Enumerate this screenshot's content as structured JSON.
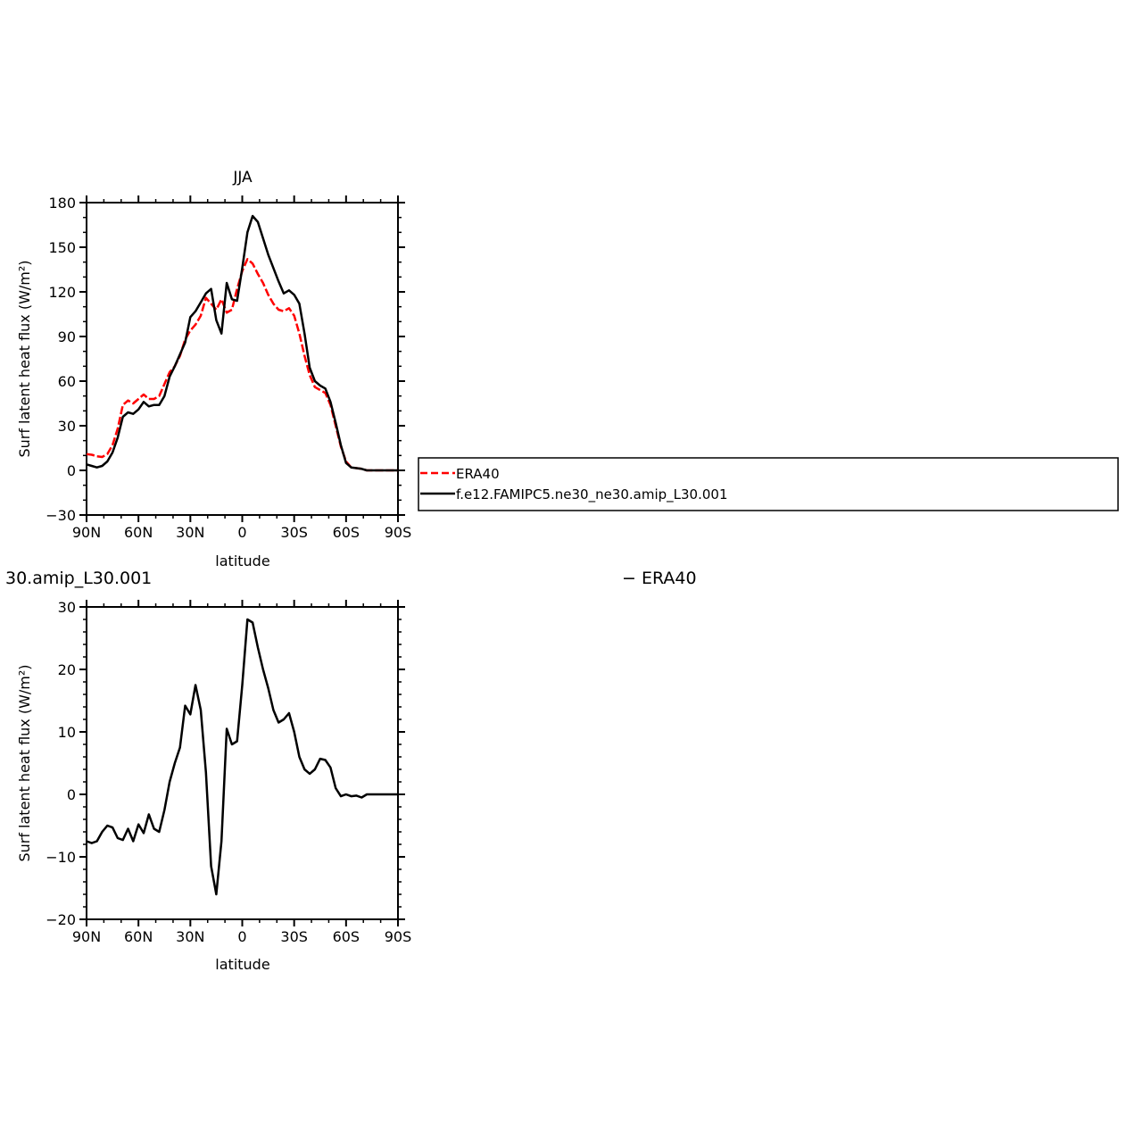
{
  "chart_data": [
    {
      "type": "line",
      "title": "JJA",
      "xlabel": "latitude",
      "ylabel": "Surf latent heat flux (W/m²)",
      "xlim": [
        90,
        -90
      ],
      "ylim": [
        -30,
        180
      ],
      "xticks": [
        90,
        60,
        30,
        0,
        -30,
        -60,
        -90
      ],
      "xtick_labels": [
        "90N",
        "60N",
        "30N",
        "0",
        "30S",
        "60S",
        "90S"
      ],
      "yticks": [
        -30,
        0,
        30,
        60,
        90,
        120,
        150,
        180
      ],
      "ytick_labels": [
        "−30",
        "0",
        "30",
        "60",
        "90",
        "120",
        "150",
        "180"
      ],
      "legend_position": "right",
      "series": [
        {
          "name": "ERA40",
          "color": "#ff0000",
          "style": "dashed",
          "x": [
            90,
            87,
            84,
            81,
            78,
            75,
            72,
            69,
            66,
            63,
            60,
            57,
            54,
            51,
            48,
            45,
            42,
            39,
            36,
            33,
            30,
            27,
            24,
            21,
            18,
            15,
            12,
            9,
            6,
            3,
            0,
            -3,
            -6,
            -9,
            -12,
            -15,
            -18,
            -21,
            -24,
            -27,
            -30,
            -33,
            -36,
            -39,
            -42,
            -45,
            -48,
            -51,
            -54,
            -57,
            -60,
            -63,
            -66,
            -69,
            -72,
            -75,
            -78,
            -81,
            -84,
            -87,
            -90
          ],
          "y": [
            11,
            10.5,
            9.5,
            9,
            11,
            17,
            28,
            44,
            47,
            45,
            48,
            51,
            48,
            48,
            50,
            58,
            66,
            70,
            77,
            88,
            94,
            98,
            104,
            116,
            112,
            108,
            115,
            106,
            108,
            122,
            134,
            142,
            139,
            132,
            126,
            118,
            112,
            108,
            107,
            109,
            104,
            92,
            77,
            64,
            56,
            54,
            52,
            44,
            30,
            16,
            6,
            2,
            1.5,
            1,
            0,
            0,
            0,
            0,
            0,
            0,
            0
          ]
        },
        {
          "name": "f.e12.FAMIPC5.ne30_ne30.amip_L30.001",
          "color": "#000000",
          "style": "solid",
          "x": [
            90,
            87,
            84,
            81,
            78,
            75,
            72,
            69,
            66,
            63,
            60,
            57,
            54,
            51,
            48,
            45,
            42,
            39,
            36,
            33,
            30,
            27,
            24,
            21,
            18,
            15,
            12,
            9,
            6,
            3,
            0,
            -3,
            -6,
            -9,
            -12,
            -15,
            -18,
            -21,
            -24,
            -27,
            -30,
            -33,
            -36,
            -39,
            -42,
            -45,
            -48,
            -51,
            -54,
            -57,
            -60,
            -63,
            -66,
            -69,
            -72,
            -75,
            -78,
            -81,
            -84,
            -87,
            -90
          ],
          "y": [
            4,
            3,
            2,
            3,
            6,
            12,
            22,
            36,
            39,
            38,
            41,
            46,
            43,
            44,
            44,
            50,
            63,
            70,
            78,
            86,
            103,
            107,
            113,
            119,
            122,
            101,
            92,
            126,
            115,
            114,
            136,
            160,
            171,
            167,
            156,
            145,
            136,
            127,
            119,
            121,
            118,
            112,
            92,
            69,
            60,
            57,
            55,
            46,
            32,
            17,
            5,
            2,
            1.5,
            1,
            0,
            0,
            0,
            0,
            0,
            0,
            0
          ]
        }
      ]
    },
    {
      "type": "line",
      "left_title": "30.amip_L30.001",
      "right_title": "− ERA40",
      "xlabel": "latitude",
      "ylabel": "Surf latent heat flux (W/m²)",
      "xlim": [
        90,
        -90
      ],
      "ylim": [
        -20,
        30
      ],
      "xticks": [
        90,
        60,
        30,
        0,
        -30,
        -60,
        -90
      ],
      "xtick_labels": [
        "90N",
        "60N",
        "30N",
        "0",
        "30S",
        "60S",
        "90S"
      ],
      "yticks": [
        -20,
        -10,
        0,
        10,
        20,
        30
      ],
      "ytick_labels": [
        "−20",
        "−10",
        "0",
        "10",
        "20",
        "30"
      ],
      "series": [
        {
          "color": "#000000",
          "style": "solid",
          "x": [
            90,
            87,
            84,
            81,
            78,
            75,
            72,
            69,
            66,
            63,
            60,
            57,
            54,
            51,
            48,
            45,
            42,
            39,
            36,
            33,
            30,
            27,
            24,
            21,
            18,
            15,
            12,
            9,
            6,
            3,
            0,
            -3,
            -6,
            -9,
            -12,
            -15,
            -18,
            -21,
            -24,
            -27,
            -30,
            -33,
            -36,
            -39,
            -42,
            -45,
            -48,
            -51,
            -54,
            -57,
            -60,
            -63,
            -66,
            -69,
            -72,
            -75,
            -78,
            -81,
            -84,
            -87,
            -90
          ],
          "y": [
            -7.5,
            -7.8,
            -7.5,
            -6.0,
            -5.0,
            -5.3,
            -7.0,
            -7.3,
            -5.5,
            -7.5,
            -4.8,
            -6.2,
            -3.2,
            -5.5,
            -6.0,
            -2.5,
            2.0,
            5.0,
            7.5,
            14.2,
            12.8,
            17.5,
            13.5,
            3.5,
            -11.5,
            -16.0,
            -7.5,
            10.5,
            8.0,
            8.5,
            17.5,
            28.0,
            27.5,
            23.5,
            20.0,
            17.0,
            13.5,
            11.5,
            12.0,
            13.0,
            10.0,
            6.0,
            4.0,
            3.3,
            4.0,
            5.7,
            5.5,
            4.3,
            1.0,
            -0.3,
            0.0,
            -0.3,
            -0.2,
            -0.5,
            0.0,
            0.0,
            0.0,
            0.0,
            0.0,
            0.0,
            0.0
          ]
        }
      ]
    }
  ]
}
